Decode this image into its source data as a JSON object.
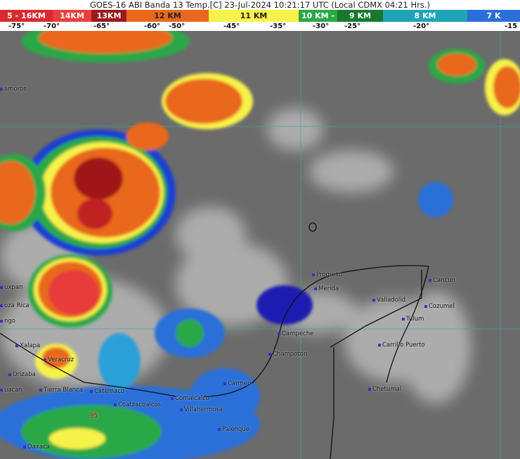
{
  "title": "GOES-16 ABI Banda 13 Temp.[C] 23-Jul-2024 10:21:17 UTC (Local CDMX  04:21 Hrs.)",
  "legend": [
    {
      "label": "5 - 16KM",
      "color": "#d92a2e",
      "text": "#fff"
    },
    {
      "label": "14KM",
      "color": "#e8403f",
      "text": "#fff"
    },
    {
      "label": "13KM",
      "color": "#9c1a1c",
      "text": "#fff"
    },
    {
      "label": "12 KM",
      "color": "#e9681e",
      "text": "#222"
    },
    {
      "label": "11 KM",
      "color": "#f7f24a",
      "text": "#222"
    },
    {
      "label": "10 KM -",
      "color": "#2aa846",
      "text": "#fff"
    },
    {
      "label": "9 KM",
      "color": "#157a2c",
      "text": "#fff"
    },
    {
      "label": "8 KM",
      "color": "#1ea4b8",
      "text": "#fff"
    },
    {
      "label": "7 K",
      "color": "#2a6fd8",
      "text": "#fff"
    }
  ],
  "temperatures": [
    "-75°",
    "-70°",
    "-65°",
    "-60°",
    "-50°",
    "-45°",
    "-35°",
    "-30°",
    "-25°",
    "-20°",
    "-15"
  ],
  "cities": [
    "amoros",
    "uxpan",
    "oza Rica",
    "ngo",
    "Xalapa",
    "Veracruz",
    "Orizaba",
    "uacan",
    "Tierra Blanca",
    "Catemaco",
    "Coatzacoalcos",
    "Comalcalco",
    "Villahermosa",
    "Carmen",
    "Palenque",
    "Oaxaca",
    "Progreso",
    "Merida",
    "Campeche",
    "Champoton",
    "Valladolid",
    "Cancun",
    "Cozumel",
    "Tulum",
    "Carrillo Puerto",
    "Chetumal"
  ],
  "map_labels": [
    "-95"
  ]
}
